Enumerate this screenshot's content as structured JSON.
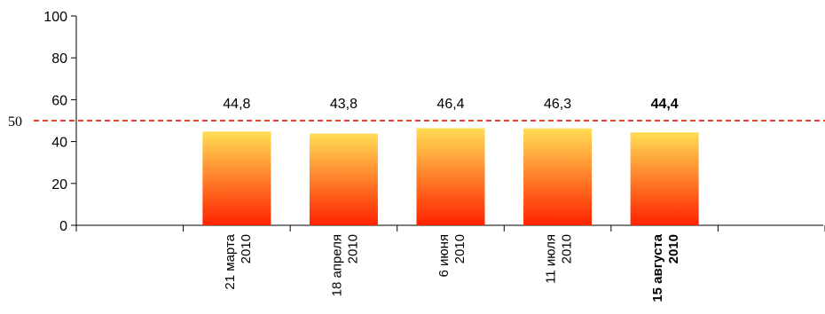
{
  "chart_data": {
    "type": "bar",
    "categories": [
      {
        "lines": [
          "21 марта",
          "2010"
        ],
        "bold": false
      },
      {
        "lines": [
          "18 апреля",
          "2010"
        ],
        "bold": false
      },
      {
        "lines": [
          "6 июня",
          "2010"
        ],
        "bold": false
      },
      {
        "lines": [
          "11 июля",
          "2010"
        ],
        "bold": false
      },
      {
        "lines": [
          "15 августа",
          "2010"
        ],
        "bold": true
      }
    ],
    "values": [
      44.8,
      43.8,
      46.4,
      46.3,
      44.4
    ],
    "value_labels": [
      "44,8",
      "43,8",
      "46,4",
      "46,3",
      "44,4"
    ],
    "title": "",
    "xlabel": "",
    "ylabel": "",
    "ylim": [
      0,
      100
    ],
    "yticks": [
      0,
      20,
      40,
      60,
      80,
      100
    ],
    "reference_line": {
      "value": 50,
      "label": "50",
      "color": "#e8432e",
      "style": "dashed"
    },
    "bar_gradient": {
      "top": "#ffdd55",
      "bottom": "#ff2200"
    },
    "grid": false,
    "legend": "none"
  }
}
